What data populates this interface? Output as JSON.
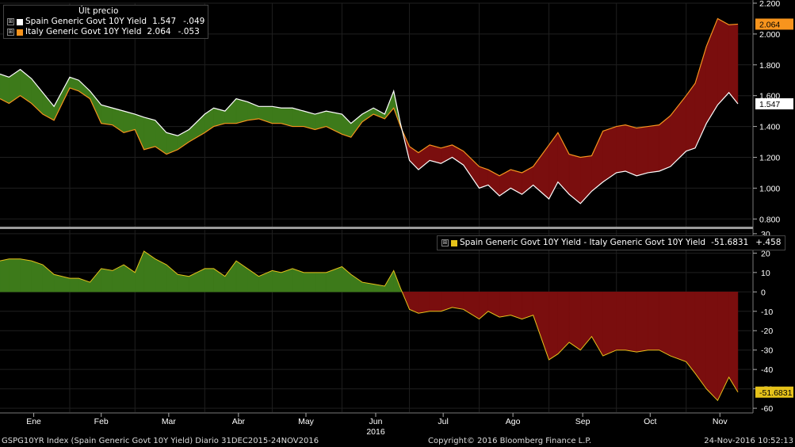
{
  "legend_top": {
    "header": "Últ precio",
    "items": [
      {
        "expander": "⊞",
        "name": "Spain Generic Govt 10Y Yield",
        "last": "1.547",
        "change": "-.049",
        "color": "#ffffff"
      },
      {
        "expander": "⊞",
        "name": "Italy Generic Govt 10Y Yield",
        "last": "2.064",
        "change": "-.053",
        "color": "#f7941d"
      }
    ]
  },
  "legend_bottom": {
    "expander": "⊞",
    "label": "Spain Generic Govt 10Y Yield - Italy Generic Govt 10Y Yield",
    "last": "-51.6831",
    "change": "+.458",
    "color": "#e6c21a"
  },
  "footer": {
    "left": "GSPG10YR Index (Spain Generic Govt 10Y Yield)  Diario 31DEC2015-24NOV2016",
    "center": "Copyright© 2016 Bloomberg Finance L.P.",
    "right": "24-Nov-2016 10:52:13"
  },
  "colors": {
    "positive_fill": "#3d7a1a",
    "negative_fill": "#7a0e0e",
    "spain_line": "#ffffff",
    "italy_line": "#f7941d",
    "spread_line": "#e6c21a",
    "italy_badge": "#f7941d",
    "spain_badge": "#ffffff",
    "spread_badge": "#e6c21a"
  },
  "chart_data": [
    {
      "type": "line",
      "title": "",
      "ylim": [
        0.75,
        2.2
      ],
      "yticks": [
        "2.200",
        "2.000",
        "1.800",
        "1.600",
        "1.400",
        "1.200",
        "1.000",
        "0.800"
      ],
      "ytick_values": [
        2.2,
        2.0,
        1.8,
        1.6,
        1.4,
        1.2,
        1.0,
        0.8
      ],
      "last_value_labels": {
        "italy": "2.064",
        "spain": "1.547"
      },
      "x": [
        "2016-01-01",
        "2016-01-05",
        "2016-01-10",
        "2016-01-15",
        "2016-01-20",
        "2016-01-25",
        "2016-02-01",
        "2016-02-05",
        "2016-02-10",
        "2016-02-15",
        "2016-02-20",
        "2016-02-25",
        "2016-03-01",
        "2016-03-05",
        "2016-03-10",
        "2016-03-15",
        "2016-03-20",
        "2016-03-25",
        "2016-04-01",
        "2016-04-05",
        "2016-04-10",
        "2016-04-15",
        "2016-04-20",
        "2016-04-25",
        "2016-05-01",
        "2016-05-05",
        "2016-05-10",
        "2016-05-15",
        "2016-05-20",
        "2016-05-25",
        "2016-06-01",
        "2016-06-05",
        "2016-06-10",
        "2016-06-15",
        "2016-06-20",
        "2016-06-24",
        "2016-06-27",
        "2016-07-01",
        "2016-07-05",
        "2016-07-10",
        "2016-07-15",
        "2016-07-20",
        "2016-07-25",
        "2016-08-01",
        "2016-08-05",
        "2016-08-10",
        "2016-08-15",
        "2016-08-20",
        "2016-08-25",
        "2016-09-01",
        "2016-09-05",
        "2016-09-10",
        "2016-09-15",
        "2016-09-20",
        "2016-09-25",
        "2016-10-01",
        "2016-10-05",
        "2016-10-10",
        "2016-10-15",
        "2016-10-20",
        "2016-10-25",
        "2016-11-01",
        "2016-11-05",
        "2016-11-10",
        "2016-11-15",
        "2016-11-20",
        "2016-11-24"
      ],
      "series": [
        {
          "name": "Spain Generic Govt 10Y Yield",
          "values": [
            1.74,
            1.72,
            1.77,
            1.71,
            1.62,
            1.53,
            1.72,
            1.7,
            1.63,
            1.54,
            1.52,
            1.5,
            1.48,
            1.46,
            1.44,
            1.36,
            1.34,
            1.38,
            1.48,
            1.52,
            1.5,
            1.58,
            1.56,
            1.53,
            1.53,
            1.52,
            1.52,
            1.5,
            1.48,
            1.5,
            1.48,
            1.42,
            1.48,
            1.52,
            1.48,
            1.63,
            1.42,
            1.18,
            1.12,
            1.18,
            1.16,
            1.2,
            1.15,
            1.0,
            1.02,
            0.95,
            1.0,
            0.96,
            1.02,
            0.93,
            1.04,
            0.96,
            0.9,
            0.98,
            1.04,
            1.1,
            1.11,
            1.08,
            1.1,
            1.11,
            1.14,
            1.24,
            1.26,
            1.42,
            1.54,
            1.62,
            1.547
          ]
        },
        {
          "name": "Italy Generic Govt 10Y Yield",
          "values": [
            1.58,
            1.55,
            1.6,
            1.55,
            1.48,
            1.44,
            1.65,
            1.63,
            1.58,
            1.42,
            1.41,
            1.36,
            1.38,
            1.25,
            1.27,
            1.22,
            1.25,
            1.3,
            1.36,
            1.4,
            1.42,
            1.42,
            1.44,
            1.45,
            1.42,
            1.42,
            1.4,
            1.4,
            1.38,
            1.4,
            1.35,
            1.33,
            1.43,
            1.48,
            1.45,
            1.52,
            1.4,
            1.27,
            1.23,
            1.28,
            1.26,
            1.28,
            1.24,
            1.14,
            1.12,
            1.08,
            1.12,
            1.1,
            1.14,
            1.28,
            1.36,
            1.22,
            1.2,
            1.21,
            1.37,
            1.4,
            1.41,
            1.39,
            1.4,
            1.41,
            1.47,
            1.6,
            1.68,
            1.92,
            2.1,
            2.06,
            2.064
          ]
        }
      ]
    },
    {
      "type": "area",
      "title": "",
      "ylim": [
        -62,
        32
      ],
      "yticks": [
        "30",
        "20",
        "10",
        "0",
        "-10",
        "-20",
        "-30",
        "-40",
        "-50",
        "-60"
      ],
      "ytick_values": [
        30,
        20,
        10,
        0,
        -10,
        -20,
        -30,
        -40,
        -50,
        -60
      ],
      "last_value_label": "-51.6831",
      "x_axis_labels": [
        "Ene",
        "Feb",
        "Mar",
        "Abr",
        "May",
        "Jun",
        "Jul",
        "Ago",
        "Sep",
        "Oct",
        "Nov"
      ],
      "x_axis_label_dates": [
        "2016-01-16",
        "2016-02-15",
        "2016-03-16",
        "2016-04-16",
        "2016-05-16",
        "2016-06-16",
        "2016-07-16",
        "2016-08-16",
        "2016-09-16",
        "2016-10-16",
        "2016-11-16"
      ],
      "year_label": "2016",
      "series": [
        {
          "name": "Spain Generic Govt 10Y Yield - Italy Generic Govt 10Y Yield",
          "values": [
            16,
            17,
            17,
            16,
            14,
            9,
            7,
            7,
            5,
            12,
            11,
            14,
            10,
            21,
            17,
            14,
            9,
            8,
            12,
            12,
            8,
            16,
            12,
            8,
            11,
            10,
            12,
            10,
            10,
            10,
            13,
            9,
            5,
            4,
            3,
            11,
            2,
            -9,
            -11,
            -10,
            -10,
            -8,
            -9,
            -14,
            -10,
            -13,
            -12,
            -14,
            -12,
            -35,
            -32,
            -26,
            -30,
            -23,
            -33,
            -30,
            -30,
            -31,
            -30,
            -30,
            -33,
            -36,
            -42,
            -50,
            -56,
            -44,
            -51.6831
          ]
        }
      ]
    }
  ]
}
